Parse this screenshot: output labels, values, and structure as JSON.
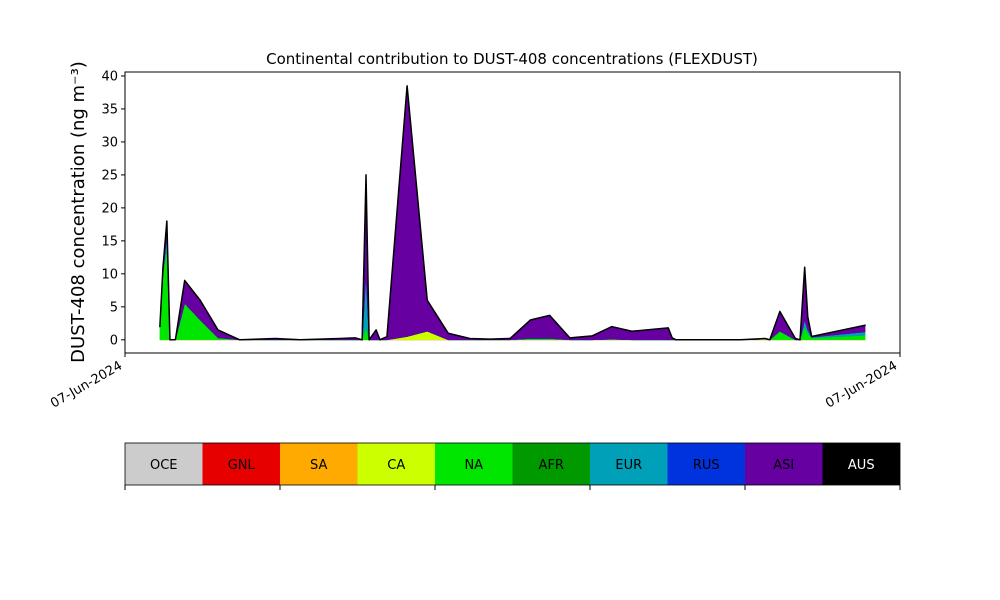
{
  "chart_data": {
    "type": "stacked_area",
    "title": "Continental contribution to DUST-408 concentrations (FLEXDUST)",
    "ylabel": "DUST-408 concentration (ng m⁻³)",
    "x": [
      4.5,
      4.9,
      5.4,
      5.8,
      6.5,
      7.7,
      9.7,
      12.0,
      14.8,
      19.4,
      22.6,
      27.7,
      29.7,
      30.6,
      31.1,
      31.5,
      32.4,
      32.9,
      33.8,
      36.4,
      39.0,
      41.7,
      44.5,
      47.1,
      49.7,
      52.3,
      54.8,
      57.4,
      60.3,
      62.8,
      65.4,
      70.1,
      70.6,
      71.1,
      79.4,
      82.6,
      83.2,
      84.5,
      86.5,
      87.1,
      87.7,
      88.1,
      88.6,
      95.5
    ],
    "xlim": [
      0,
      100
    ],
    "xticks": [
      {
        "value": 0,
        "label": "07-Jun-2024"
      },
      {
        "value": 100,
        "label": "07-Jun-2024"
      }
    ],
    "ylim": [
      -2,
      40.6
    ],
    "yticks": [
      0,
      5,
      10,
      15,
      20,
      25,
      30,
      35,
      40
    ],
    "series": [
      {
        "name": "OCE",
        "color": "#cccccc",
        "values": [
          0,
          0,
          0,
          0,
          0,
          0,
          0,
          0,
          0,
          0,
          0,
          0,
          0,
          0,
          0,
          0,
          0,
          0,
          0,
          0,
          0,
          0,
          0,
          0,
          0,
          0,
          0,
          0,
          0,
          0,
          0,
          0,
          0,
          0,
          0,
          0,
          0,
          0,
          0,
          0,
          0,
          0,
          0,
          0
        ]
      },
      {
        "name": "GNL",
        "color": "#e60000",
        "values": [
          0,
          0,
          0,
          0,
          0,
          0,
          0,
          0,
          0,
          0,
          0,
          0,
          0,
          0,
          0,
          0,
          0,
          0,
          0,
          0,
          0,
          0,
          0,
          0,
          0,
          0,
          0,
          0,
          0,
          0,
          0,
          0,
          0,
          0,
          0,
          0,
          0,
          0,
          0,
          0,
          0,
          0,
          0,
          0
        ]
      },
      {
        "name": "SA",
        "color": "#ffaa00",
        "values": [
          0,
          0,
          0,
          0,
          0,
          0,
          0,
          0,
          0,
          0,
          0,
          0,
          0,
          0,
          0,
          0,
          0,
          0,
          0,
          0,
          0,
          0,
          0,
          0,
          0,
          0,
          0,
          0,
          0,
          0,
          0,
          0,
          0,
          0,
          0,
          0,
          0,
          0,
          0,
          0,
          0,
          0,
          0,
          0
        ]
      },
      {
        "name": "CA",
        "color": "#ccff00",
        "values": [
          0,
          0,
          0,
          0,
          0,
          0,
          0,
          0,
          0,
          0,
          0,
          0,
          0,
          0,
          0,
          0,
          0,
          0,
          0,
          0.5,
          1.3,
          0,
          0,
          0,
          0,
          0,
          0,
          0,
          0,
          0,
          0,
          0,
          0,
          0,
          0,
          0.1,
          0,
          0,
          0,
          0,
          0,
          0,
          0,
          0
        ]
      },
      {
        "name": "NA",
        "color": "#00e600",
        "values": [
          2,
          10,
          14,
          0,
          0,
          5.5,
          3,
          0.3,
          0,
          0,
          0,
          0,
          0,
          0,
          2,
          0,
          0,
          0,
          0,
          0,
          0,
          0,
          0,
          0,
          0,
          0.2,
          0.2,
          0,
          0,
          0.1,
          0,
          0,
          0,
          0,
          0,
          0,
          0,
          1.3,
          0,
          0,
          2,
          1,
          0.3,
          0.7
        ]
      },
      {
        "name": "AFR",
        "color": "#009900",
        "values": [
          0,
          0,
          0,
          0,
          0,
          0,
          0,
          0,
          0,
          0,
          0,
          0,
          0,
          0,
          0,
          0,
          0,
          0,
          0,
          0,
          0,
          0,
          0,
          0,
          0,
          0,
          0,
          0,
          0,
          0,
          0,
          0,
          0,
          0,
          0,
          0,
          0,
          0,
          0,
          0,
          0,
          0,
          0,
          0
        ]
      },
      {
        "name": "EUR",
        "color": "#00a0b8",
        "values": [
          0,
          0,
          2,
          0,
          0,
          0,
          0,
          0,
          0,
          0,
          0,
          0,
          0,
          0,
          8,
          0,
          0,
          0,
          0,
          0,
          0,
          0,
          0,
          0,
          0,
          0,
          0,
          0,
          0,
          0,
          0,
          0,
          0,
          0,
          0,
          0,
          0,
          0,
          0,
          0,
          1,
          0.5,
          0.1,
          0.5
        ]
      },
      {
        "name": "RUS",
        "color": "#0033dd",
        "values": [
          0,
          0,
          0,
          0,
          0,
          0,
          0,
          0,
          0,
          0,
          0,
          0,
          0,
          0,
          0,
          0,
          0,
          0,
          0,
          0,
          0,
          0,
          0,
          0,
          0,
          0,
          0,
          0,
          0,
          0,
          0,
          0,
          0,
          0,
          0,
          0,
          0,
          0,
          0,
          0,
          0,
          0,
          0,
          0
        ]
      },
      {
        "name": "ASI",
        "color": "#6600a0",
        "values": [
          0,
          1,
          2,
          0,
          0,
          3.5,
          3,
          1.2,
          0,
          0.2,
          0,
          0.2,
          0.3,
          0,
          15,
          0,
          1.5,
          0,
          0.5,
          38,
          4.7,
          1,
          0.2,
          0.1,
          0.2,
          2.8,
          3.5,
          0.3,
          0.6,
          1.9,
          1.3,
          1.8,
          0.3,
          0,
          0,
          0.1,
          0,
          3,
          0.2,
          0,
          8,
          2,
          0.1,
          1
        ]
      },
      {
        "name": "AUS",
        "color": "#000000",
        "values": [
          0,
          0,
          0,
          0,
          0,
          0,
          0,
          0,
          0,
          0,
          0,
          0,
          0,
          0,
          0,
          0,
          0,
          0,
          0,
          0,
          0,
          0,
          0,
          0,
          0,
          0,
          0,
          0,
          0,
          0,
          0,
          0,
          0,
          0,
          0,
          0,
          0,
          0,
          0,
          0,
          0,
          0,
          0,
          0
        ]
      }
    ]
  }
}
